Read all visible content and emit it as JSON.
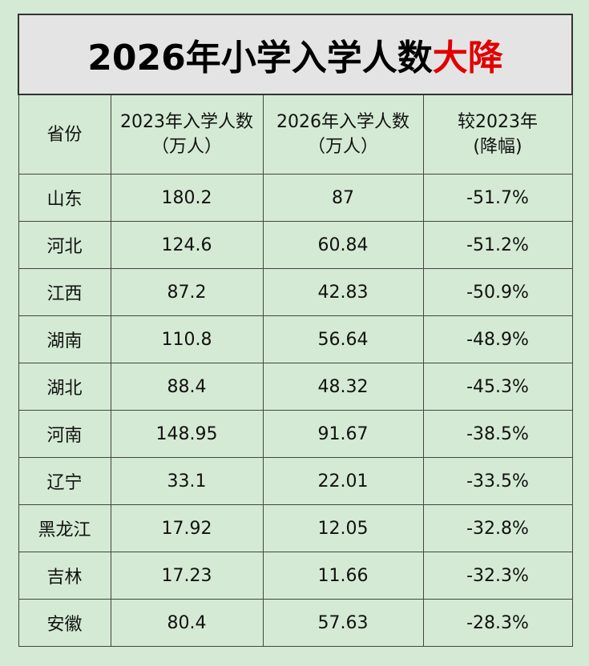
{
  "title": {
    "main": "2026年小学入学人数",
    "highlight": "大降"
  },
  "table": {
    "header": [
      [
        "省份"
      ],
      [
        "2023年入学人数",
        "（万人）"
      ],
      [
        "2026年入学人数",
        "（万人）"
      ],
      [
        "较2023年",
        "(降幅)"
      ]
    ],
    "rows": [
      [
        "山东",
        "180.2",
        "87",
        "-51.7%"
      ],
      [
        "河北",
        "124.6",
        "60.84",
        "-51.2%"
      ],
      [
        "江西",
        "87.2",
        "42.83",
        "-50.9%"
      ],
      [
        "湖南",
        "110.8",
        "56.64",
        "-48.9%"
      ],
      [
        "湖北",
        "88.4",
        "48.32",
        "-45.3%"
      ],
      [
        "河南",
        "148.95",
        "91.67",
        "-38.5%"
      ],
      [
        "辽宁",
        "33.1",
        "22.01",
        "-33.5%"
      ],
      [
        "黑龙江",
        "17.92",
        "12.05",
        "-32.8%"
      ],
      [
        "吉林",
        "17.23",
        "11.66",
        "-32.3%"
      ],
      [
        "安徽",
        "80.4",
        "57.63",
        "-28.3%"
      ]
    ]
  }
}
